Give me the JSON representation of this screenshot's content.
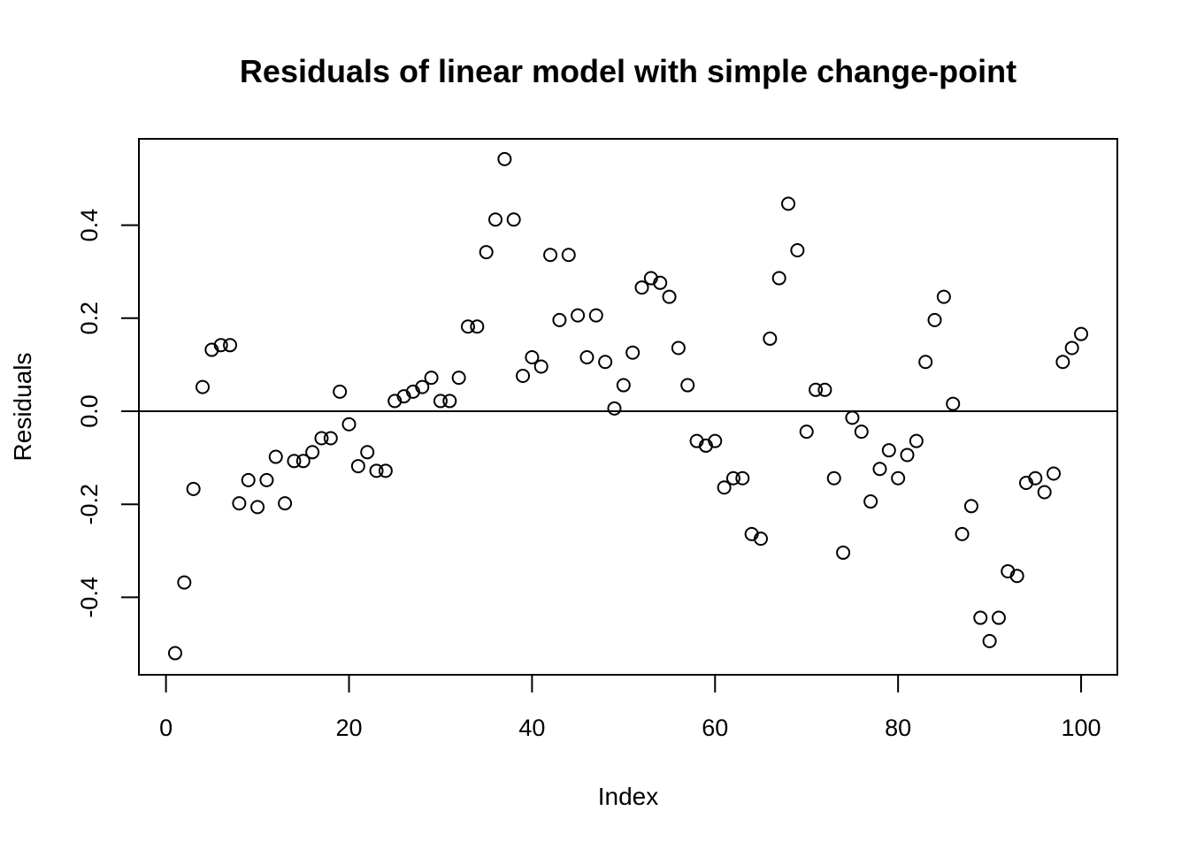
{
  "chart_data": {
    "type": "scatter",
    "title": "Residuals of linear model with simple change-point",
    "xlabel": "Index",
    "ylabel": "Residuals",
    "xlim": [
      -2.96,
      103.96
    ],
    "ylim": [
      -0.5665,
      0.5855
    ],
    "xticks": [
      0,
      20,
      40,
      60,
      80,
      100
    ],
    "xtick_labels": [
      "0",
      "20",
      "40",
      "60",
      "80",
      "100"
    ],
    "yticks": [
      -0.4,
      -0.2,
      0.0,
      0.2,
      0.4
    ],
    "ytick_labels": [
      "-0.4",
      "-0.2",
      "0.0",
      "0.2",
      "0.4"
    ],
    "reference_line": {
      "y": 0
    },
    "grid": false,
    "legend": "none",
    "marker": "open-circle",
    "color": "#000000",
    "x": [
      1,
      2,
      3,
      4,
      5,
      6,
      7,
      8,
      9,
      10,
      11,
      12,
      13,
      14,
      15,
      16,
      17,
      18,
      19,
      20,
      21,
      22,
      23,
      24,
      25,
      26,
      27,
      28,
      29,
      30,
      31,
      32,
      33,
      34,
      35,
      36,
      37,
      38,
      39,
      40,
      41,
      42,
      43,
      44,
      45,
      46,
      47,
      48,
      49,
      50,
      51,
      52,
      53,
      54,
      55,
      56,
      57,
      58,
      59,
      60,
      61,
      62,
      63,
      64,
      65,
      66,
      67,
      68,
      69,
      70,
      71,
      72,
      73,
      74,
      75,
      76,
      77,
      78,
      79,
      80,
      81,
      82,
      83,
      84,
      85,
      86,
      87,
      88,
      89,
      90,
      91,
      92,
      93,
      94,
      95,
      96,
      97,
      98,
      99,
      100
    ],
    "y": [
      -0.52,
      -0.368,
      -0.167,
      0.052,
      0.132,
      0.142,
      0.142,
      -0.198,
      -0.148,
      -0.206,
      -0.148,
      -0.098,
      -0.198,
      -0.107,
      -0.107,
      -0.088,
      -0.058,
      -0.058,
      0.042,
      -0.028,
      -0.118,
      -0.088,
      -0.128,
      -0.128,
      0.022,
      0.032,
      0.042,
      0.052,
      0.072,
      0.022,
      0.022,
      0.072,
      0.182,
      0.182,
      0.342,
      0.412,
      0.542,
      0.412,
      0.076,
      0.116,
      0.096,
      0.336,
      0.196,
      0.336,
      0.206,
      0.116,
      0.206,
      0.106,
      0.006,
      0.056,
      0.126,
      0.266,
      0.286,
      0.276,
      0.246,
      0.136,
      0.056,
      -0.064,
      -0.074,
      -0.064,
      -0.164,
      -0.144,
      -0.144,
      -0.264,
      -0.274,
      0.156,
      0.286,
      0.446,
      0.346,
      -0.044,
      0.046,
      0.046,
      -0.144,
      -0.304,
      -0.014,
      -0.044,
      -0.194,
      -0.124,
      -0.084,
      -0.144,
      -0.094,
      -0.064,
      0.106,
      0.196,
      0.246,
      0.016,
      -0.264,
      -0.204,
      -0.444,
      -0.494,
      -0.444,
      -0.344,
      -0.354,
      -0.154,
      -0.144,
      -0.174,
      -0.134,
      0.106,
      0.136,
      0.166
    ]
  }
}
